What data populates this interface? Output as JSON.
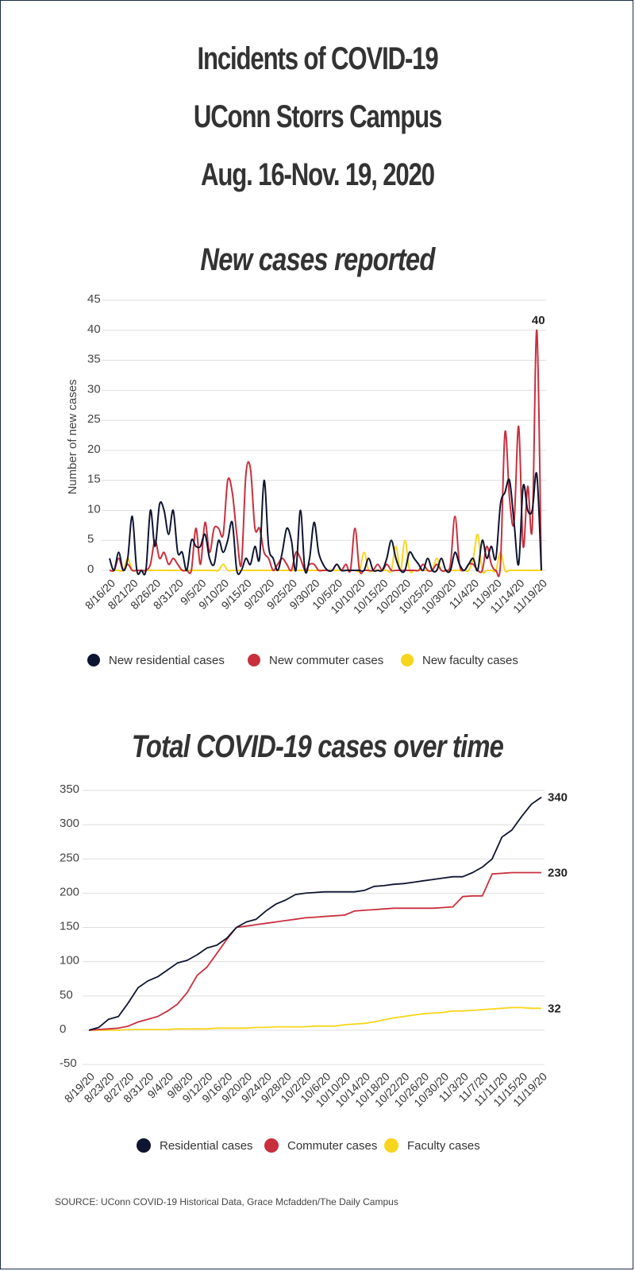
{
  "header": {
    "title_line1": "Incidents of COVID-19",
    "title_line2": "UConn Storrs Campus",
    "title_line3": "Aug. 16-Nov. 19, 2020"
  },
  "colors": {
    "residential": "#0e1530",
    "commuter": "#c8303e",
    "faculty": "#f7d51c",
    "grid": "#dddddd"
  },
  "chart_data": [
    {
      "type": "line",
      "title": "New cases reported",
      "ylabel": "Number of new cases",
      "xlabel": "",
      "ylim": [
        0,
        45
      ],
      "yticks": [
        0,
        5,
        10,
        15,
        20,
        25,
        30,
        35,
        40,
        45
      ],
      "grid": true,
      "legend_position": "bottom",
      "x": [
        "8/16/20",
        "8/17/20",
        "8/18/20",
        "8/19/20",
        "8/20/20",
        "8/21/20",
        "8/22/20",
        "8/23/20",
        "8/24/20",
        "8/25/20",
        "8/26/20",
        "8/27/20",
        "8/28/20",
        "8/29/20",
        "8/30/20",
        "8/31/20",
        "9/1/20",
        "9/2/20",
        "9/3/20",
        "9/4/20",
        "9/5/20",
        "9/6/20",
        "9/7/20",
        "9/8/20",
        "9/9/20",
        "9/10/20",
        "9/11/20",
        "9/12/20",
        "9/13/20",
        "9/14/20",
        "9/15/20",
        "9/16/20",
        "9/17/20",
        "9/18/20",
        "9/19/20",
        "9/20/20",
        "9/21/20",
        "9/22/20",
        "9/23/20",
        "9/24/20",
        "9/25/20",
        "9/26/20",
        "9/27/20",
        "9/28/20",
        "9/29/20",
        "9/30/20",
        "10/1/20",
        "10/2/20",
        "10/3/20",
        "10/4/20",
        "10/5/20",
        "10/6/20",
        "10/7/20",
        "10/8/20",
        "10/9/20",
        "10/10/20",
        "10/11/20",
        "10/12/20",
        "10/13/20",
        "10/14/20",
        "10/15/20",
        "10/16/20",
        "10/17/20",
        "10/18/20",
        "10/19/20",
        "10/20/20",
        "10/21/20",
        "10/22/20",
        "10/23/20",
        "10/24/20",
        "10/25/20",
        "10/26/20",
        "10/27/20",
        "10/28/20",
        "10/29/20",
        "10/30/20",
        "10/31/20",
        "11/1/20",
        "11/2/20",
        "11/3/20",
        "11/4/20",
        "11/5/20",
        "11/6/20",
        "11/7/20",
        "11/8/20",
        "11/9/20",
        "11/10/20",
        "11/11/20",
        "11/12/20",
        "11/13/20",
        "11/14/20",
        "11/15/20",
        "11/16/20",
        "11/17/20",
        "11/18/20",
        "11/19/20"
      ],
      "xtick_labels": [
        "8/16/20",
        "8/21/20",
        "8/26/20",
        "8/31/20",
        "9/5/20",
        "9/10/20",
        "9/15/20",
        "9/20/20",
        "9/25/20",
        "9/30/20",
        "10/5/20",
        "10/10/20",
        "10/15/20",
        "10/20/20",
        "10/25/20",
        "10/30/20",
        "11/4/20",
        "11/9/20",
        "11/14/20",
        "11/19/20"
      ],
      "series": [
        {
          "name": "New residential cases",
          "color": "#0e1530",
          "values": [
            2,
            0,
            3,
            0,
            2,
            9,
            0,
            0,
            0,
            10,
            4,
            11,
            10,
            6,
            10,
            3,
            3,
            0,
            5,
            4,
            4,
            6,
            2,
            1,
            5,
            3,
            5,
            8,
            0,
            0,
            2,
            1,
            4,
            2,
            15,
            4,
            2,
            0,
            3,
            7,
            5,
            0,
            10,
            0,
            2,
            8,
            3,
            1,
            0,
            0,
            1,
            0,
            0,
            0,
            0,
            0,
            0,
            2,
            0,
            0,
            0,
            2,
            5,
            2,
            0,
            0,
            3,
            2,
            1,
            0,
            2,
            0,
            0,
            2,
            0,
            0,
            3,
            1,
            0,
            1,
            2,
            0,
            5,
            2,
            4,
            2,
            11,
            13,
            15,
            8,
            1,
            14,
            10,
            10,
            16,
            0
          ]
        },
        {
          "name": "New commuter cases",
          "color": "#c8303e",
          "values": [
            0,
            0,
            2,
            0,
            1,
            0,
            0,
            0,
            0,
            1,
            5,
            2,
            3,
            1,
            2,
            1,
            0,
            0,
            0,
            7,
            1,
            8,
            3,
            7,
            7,
            6,
            15,
            13,
            6,
            1,
            16,
            17,
            7,
            7,
            3,
            2,
            0,
            1,
            2,
            1,
            0,
            3,
            2,
            0,
            1,
            1,
            0,
            0,
            0,
            0,
            1,
            0,
            1,
            0,
            7,
            0,
            0,
            0,
            0,
            1,
            0,
            1,
            0,
            0,
            0,
            0,
            0,
            0,
            0,
            1,
            0,
            0,
            1,
            0,
            0,
            1,
            9,
            1,
            0,
            1,
            1,
            0,
            0,
            4,
            1,
            0,
            1,
            23,
            12,
            8,
            24,
            4,
            14,
            7,
            40,
            0
          ]
        },
        {
          "name": "New faculty cases",
          "color": "#f7d51c",
          "values": [
            0,
            0,
            0,
            0,
            2,
            0,
            0,
            0,
            0,
            0,
            0,
            0,
            0,
            0,
            0,
            0,
            0,
            0,
            0,
            0,
            0,
            0,
            0,
            0,
            0,
            1,
            0,
            0,
            0,
            0,
            0,
            0,
            0,
            0,
            0,
            0,
            0,
            0,
            0,
            0,
            0,
            0,
            0,
            0,
            0,
            0,
            0,
            0,
            0,
            0,
            0,
            0,
            0,
            0,
            0,
            0,
            3,
            0,
            0,
            0,
            0,
            0,
            0,
            4,
            0,
            5,
            0,
            0,
            0,
            0,
            0,
            0,
            2,
            0,
            0,
            0,
            0,
            0,
            0,
            0,
            2,
            6,
            0,
            0,
            0,
            0,
            3,
            0,
            0,
            0,
            0,
            0,
            0,
            0,
            0,
            0
          ]
        }
      ],
      "annotations": [
        {
          "x": "11/18/20",
          "y": 40,
          "text": "40"
        }
      ]
    },
    {
      "type": "line",
      "title": "Total COVID-19 cases over time",
      "ylabel": "",
      "xlabel": "",
      "ylim": [
        -50,
        350
      ],
      "yticks": [
        -50,
        0,
        50,
        100,
        150,
        200,
        250,
        300,
        350
      ],
      "grid": true,
      "legend_position": "bottom",
      "x": [
        "8/19/20",
        "8/21/20",
        "8/23/20",
        "8/25/20",
        "8/27/20",
        "8/29/20",
        "8/31/20",
        "9/2/20",
        "9/4/20",
        "9/6/20",
        "9/8/20",
        "9/10/20",
        "9/12/20",
        "9/14/20",
        "9/16/20",
        "9/18/20",
        "9/20/20",
        "9/22/20",
        "9/24/20",
        "9/26/20",
        "9/28/20",
        "9/30/20",
        "10/2/20",
        "10/4/20",
        "10/6/20",
        "10/8/20",
        "10/10/20",
        "10/12/20",
        "10/14/20",
        "10/16/20",
        "10/18/20",
        "10/20/20",
        "10/22/20",
        "10/24/20",
        "10/26/20",
        "10/28/20",
        "10/30/20",
        "11/1/20",
        "11/3/20",
        "11/5/20",
        "11/7/20",
        "11/9/20",
        "11/11/20",
        "11/13/20",
        "11/15/20",
        "11/17/20",
        "11/19/20"
      ],
      "xtick_labels": [
        "8/19/20",
        "8/23/20",
        "8/27/20",
        "8/31/20",
        "9/4/20",
        "9/8/20",
        "9/12/20",
        "9/16/20",
        "9/20/20",
        "9/24/20",
        "9/28/20",
        "10/2/20",
        "10/6/20",
        "10/10/20",
        "10/14/20",
        "10/18/20",
        "10/22/20",
        "10/26/20",
        "10/30/20",
        "11/3/20",
        "11/7/20",
        "11/11/20",
        "11/15/20",
        "11/19/20"
      ],
      "series": [
        {
          "name": "Residential cases",
          "color": "#0e1530",
          "values": [
            0,
            4,
            16,
            20,
            40,
            62,
            72,
            78,
            88,
            98,
            102,
            110,
            120,
            124,
            134,
            150,
            158,
            162,
            174,
            184,
            190,
            198,
            200,
            201,
            202,
            202,
            202,
            202,
            204,
            210,
            211,
            213,
            214,
            216,
            218,
            220,
            222,
            224,
            224,
            230,
            238,
            250,
            282,
            292,
            312,
            330,
            340
          ]
        },
        {
          "name": "Commuter cases",
          "color": "#c8303e",
          "values": [
            0,
            1,
            2,
            3,
            6,
            12,
            16,
            20,
            28,
            38,
            55,
            80,
            92,
            112,
            132,
            150,
            152,
            154,
            156,
            158,
            160,
            162,
            164,
            165,
            166,
            167,
            168,
            174,
            175,
            176,
            177,
            178,
            178,
            178,
            178,
            178,
            179,
            180,
            195,
            196,
            196,
            228,
            229,
            230,
            230,
            230,
            230
          ]
        },
        {
          "name": "Faculty cases",
          "color": "#f7d51c",
          "values": [
            0,
            0,
            0,
            0,
            1,
            1,
            1,
            1,
            1,
            2,
            2,
            2,
            2,
            3,
            3,
            3,
            3,
            4,
            4,
            5,
            5,
            5,
            5,
            6,
            6,
            6,
            8,
            9,
            10,
            12,
            15,
            18,
            20,
            22,
            24,
            25,
            26,
            28,
            28,
            29,
            30,
            31,
            32,
            33,
            33,
            32,
            32
          ]
        }
      ],
      "end_labels": [
        "340",
        "230",
        "32"
      ]
    }
  ],
  "legend1": {
    "residential": "New residential cases",
    "commuter": "New commuter cases",
    "faculty": "New faculty cases"
  },
  "legend2": {
    "residential": "Residential cases",
    "commuter": "Commuter cases",
    "faculty": "Faculty cases"
  },
  "footer": {
    "source": "SOURCE: UConn COVID-19 Historical Data, Grace Mcfadden/The Daily Campus"
  }
}
